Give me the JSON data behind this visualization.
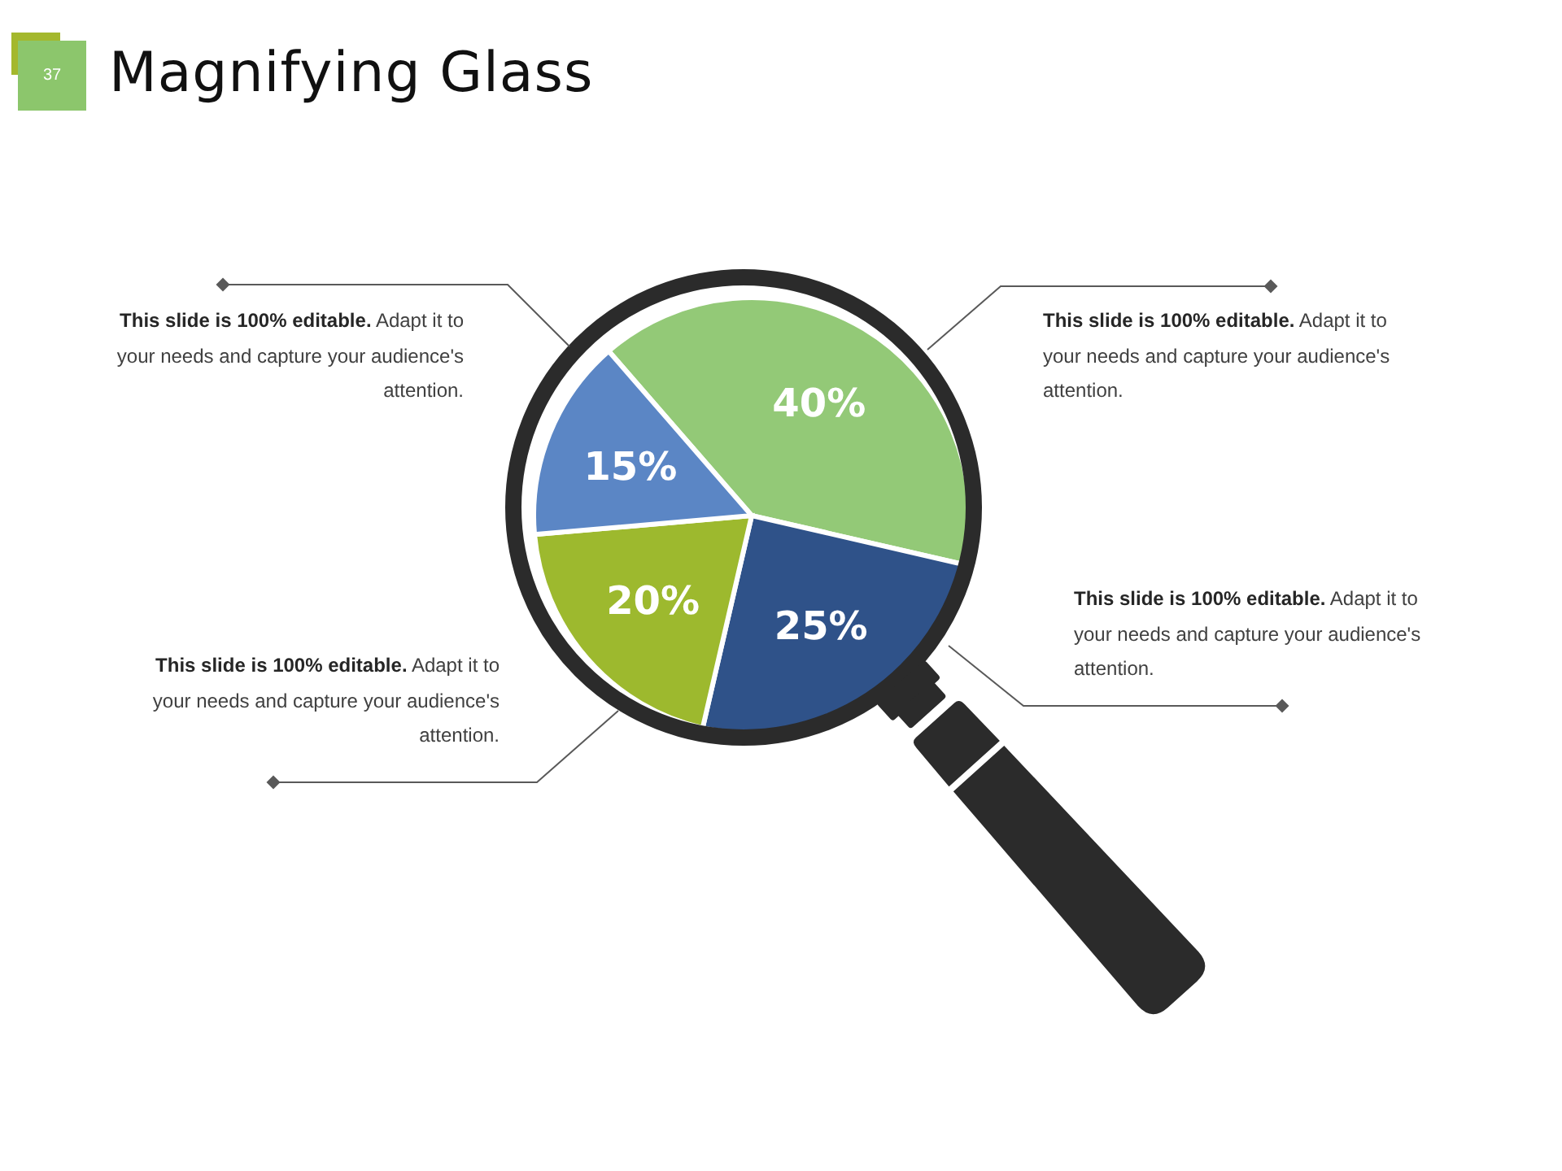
{
  "chart_data": {
    "type": "pie",
    "title": "Magnifying Glass",
    "categories": [
      null,
      null,
      null,
      null
    ],
    "values": [
      40,
      25,
      20,
      15
    ],
    "colors": [
      "#93c977",
      "#2f5289",
      "#9db92e",
      "#5b86c5"
    ],
    "value_labels": [
      "40%",
      "25%",
      "20%",
      "15%"
    ],
    "annotations": [
      "37",
      "This slide is 100% editable. Adapt it to your needs and capture your audience's attention.",
      "This slide is 100% editable. Adapt it to your needs and capture your audience's attention.",
      "This slide is 100% editable. Adapt it to your needs and capture your audience's attention.",
      "This slide is 100% editable. Adapt it to your needs and capture your audience's attention."
    ]
  }
}
